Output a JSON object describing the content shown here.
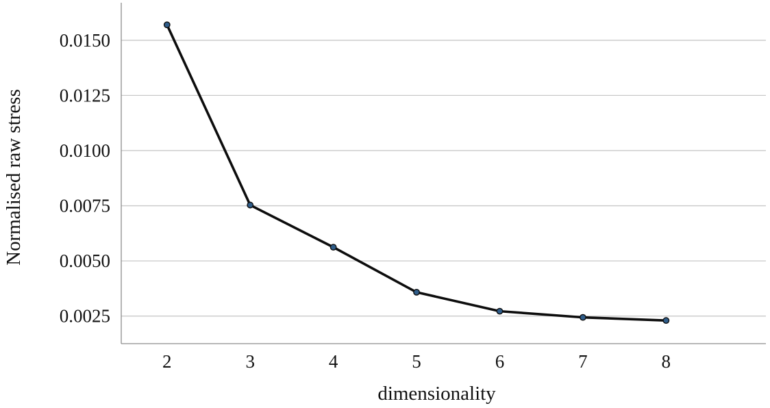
{
  "chart_data": {
    "type": "line",
    "title": "",
    "xlabel": "dimensionality",
    "ylabel": "Normalised raw stress",
    "x": [
      2,
      3,
      4,
      5,
      6,
      7,
      8
    ],
    "series": [
      {
        "values": [
          0.0157,
          0.00753,
          0.00562,
          0.00358,
          0.00272,
          0.00244,
          0.0023
        ]
      }
    ],
    "xticks": [
      "2",
      "3",
      "4",
      "5",
      "6",
      "7",
      "8"
    ],
    "yticks": [
      "0.0025",
      "0.0050",
      "0.0075",
      "0.0100",
      "0.0125",
      "0.0150"
    ],
    "ylim": [
      0.00125,
      0.0167
    ],
    "xlim": [
      1.45,
      9.2
    ],
    "grid": "horizontal",
    "legend": "none",
    "colors": {
      "line": "#0d0d0d",
      "marker": "#2f5d8a",
      "grid": "#c8c8c8",
      "axis": "#8c8c8c"
    }
  }
}
